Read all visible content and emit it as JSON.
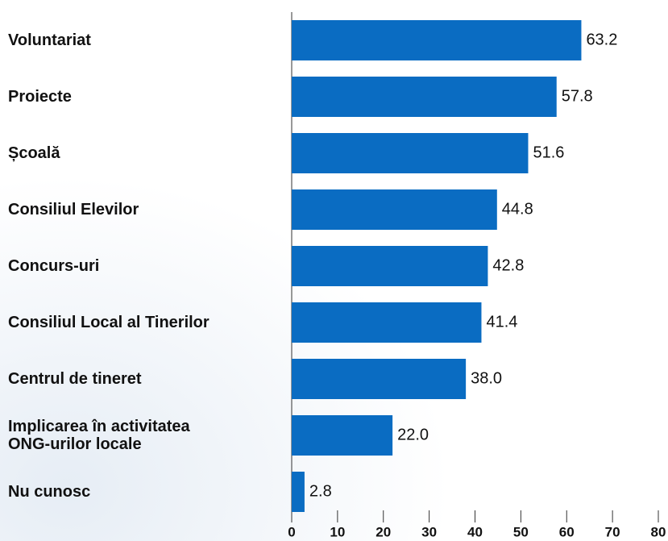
{
  "chart_data": {
    "type": "bar",
    "orientation": "horizontal",
    "categories": [
      "Voluntariat",
      "Proiecte",
      "Școală",
      "Consiliul Elevilor",
      "Concurs-uri",
      "Consiliul Local al Tinerilor",
      "Centrul de tineret",
      "Implicarea în activitatea\nONG-urilor locale",
      "Nu cunosc"
    ],
    "values": [
      63.2,
      57.8,
      51.6,
      44.8,
      42.8,
      41.4,
      38.0,
      22.0,
      2.8
    ],
    "value_labels": [
      "63.2",
      "57.8",
      "51.6",
      "44.8",
      "42.8",
      "41.4",
      "38.0",
      "22.0",
      "2.8"
    ],
    "color": "#0a6cc2",
    "xlim": [
      0,
      80
    ],
    "xticks": [
      0,
      10,
      20,
      30,
      40,
      50,
      60,
      70,
      80
    ]
  }
}
